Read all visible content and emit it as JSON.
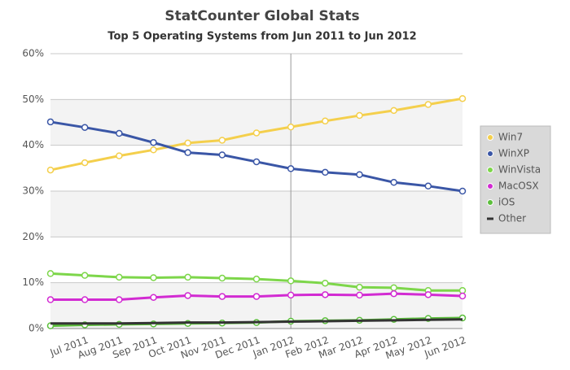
{
  "chart_data": {
    "type": "line",
    "title": "StatCounter Global Stats",
    "subtitle": "Top 5 Operating Systems from Jun 2011 to Jun 2012",
    "categories": [
      null,
      "Jul 2011",
      "Aug 2011",
      "Sep 2011",
      "Oct 2011",
      "Nov 2011",
      "Dec 2011",
      "Jan 2012",
      "Feb 2012",
      "Mar 2012",
      "Apr 2012",
      "May 2012",
      "Jun 2012"
    ],
    "ylim": [
      0,
      60
    ],
    "yticks": [
      {
        "value": 0,
        "label": "0%"
      },
      {
        "value": 10,
        "label": "10%"
      },
      {
        "value": 20,
        "label": "20%"
      },
      {
        "value": 30,
        "label": "30%"
      },
      {
        "value": 40,
        "label": "40%"
      },
      {
        "value": 50,
        "label": "50%"
      },
      {
        "value": 60,
        "label": "60%"
      }
    ],
    "grid": true,
    "legend": "right",
    "series": [
      {
        "name": "Win7",
        "color": "#f4cf4c",
        "values": [
          34.6,
          36.2,
          37.7,
          39.0,
          40.5,
          41.1,
          42.7,
          44.0,
          45.3,
          46.5,
          47.6,
          48.9,
          50.2
        ]
      },
      {
        "name": "WinXP",
        "color": "#3a56a6",
        "values": [
          45.1,
          43.9,
          42.6,
          40.6,
          38.4,
          37.9,
          36.4,
          34.9,
          34.1,
          33.6,
          31.9,
          31.1,
          30.0
        ]
      },
      {
        "name": "WinVista",
        "color": "#7dd64a",
        "values": [
          12.0,
          11.6,
          11.2,
          11.1,
          11.2,
          11.0,
          10.8,
          10.4,
          9.9,
          9.0,
          8.9,
          8.3,
          8.3
        ]
      },
      {
        "name": "MacOSX",
        "color": "#d22bd2",
        "values": [
          6.3,
          6.3,
          6.3,
          6.8,
          7.2,
          7.0,
          7.0,
          7.3,
          7.4,
          7.3,
          7.6,
          7.4,
          7.1
        ]
      },
      {
        "name": "iOS",
        "color": "#5cbf3c",
        "values": [
          0.6,
          0.8,
          0.9,
          1.0,
          1.1,
          1.2,
          1.3,
          1.6,
          1.7,
          1.8,
          2.0,
          2.2,
          2.3
        ]
      },
      {
        "name": "Other",
        "color": "#333333",
        "values": [
          1.1,
          1.1,
          1.1,
          1.2,
          1.3,
          1.3,
          1.4,
          1.5,
          1.6,
          1.7,
          1.8,
          1.9,
          2.0
        ]
      }
    ]
  }
}
